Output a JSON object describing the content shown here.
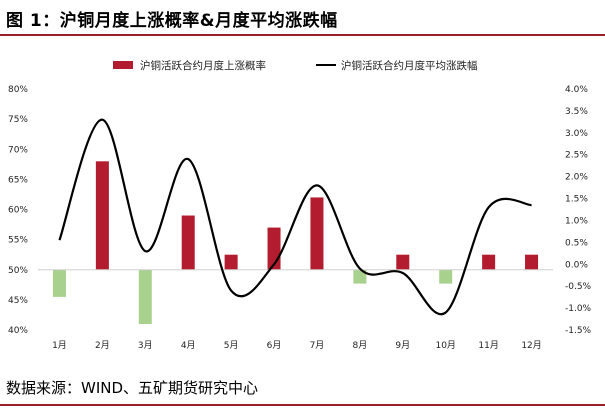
{
  "header": {
    "title": "图 1：沪铜月度上涨概率&月度平均涨跌幅"
  },
  "footer": {
    "source": "数据来源：WIND、五矿期货研究中心"
  },
  "colors": {
    "rule": "#9a1f2a",
    "bar_positive": "#b31c2e",
    "bar_negative": "#a9d18e",
    "line": "#000000"
  },
  "chart_data": {
    "type": "bar+line",
    "categories": [
      "1月",
      "2月",
      "3月",
      "4月",
      "5月",
      "6月",
      "7月",
      "8月",
      "9月",
      "10月",
      "11月",
      "12月"
    ],
    "series": [
      {
        "name": "沪铜活跃合约月度上涨概率",
        "type": "bar",
        "axis": "left",
        "baseline": 50,
        "values": [
          45.5,
          68,
          41,
          59,
          52.5,
          57,
          62,
          47.7,
          52.5,
          47.7,
          52.5,
          52.5
        ]
      },
      {
        "name": "沪铜活跃合约月度平均涨跌幅",
        "type": "line",
        "axis": "right",
        "values": [
          0.55,
          3.3,
          0.3,
          2.4,
          -0.6,
          0.0,
          1.8,
          -0.1,
          -0.2,
          -1.1,
          1.3,
          1.35
        ]
      }
    ],
    "y_left": {
      "min": 40,
      "max": 80,
      "step": 5,
      "ticks": [
        "40%",
        "45%",
        "50%",
        "55%",
        "60%",
        "65%",
        "70%",
        "75%",
        "80%"
      ]
    },
    "y_right": {
      "min": -1.5,
      "max": 4.0,
      "step": 0.5,
      "ticks": [
        "-1.5%",
        "-1.0%",
        "-0.5%",
        "0.0%",
        "0.5%",
        "1.0%",
        "1.5%",
        "2.0%",
        "2.5%",
        "3.0%",
        "3.5%",
        "4.0%"
      ]
    },
    "legend_position": "top",
    "grid": false
  }
}
